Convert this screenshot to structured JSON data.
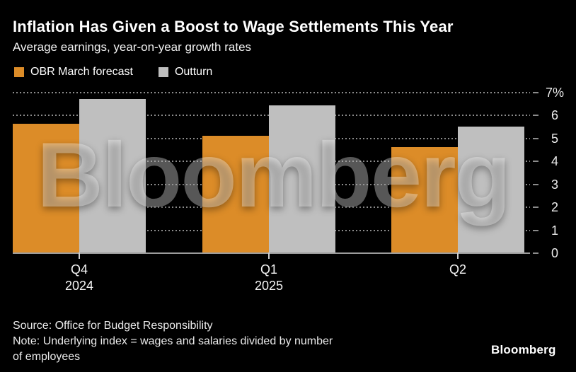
{
  "chart_data": {
    "type": "bar",
    "title": "Inflation Has Given a Boost to Wage Settlements This Year",
    "subtitle": "Average earnings, year-on-year growth rates",
    "categories": [
      {
        "quarter": "Q4",
        "year": "2024"
      },
      {
        "quarter": "Q1",
        "year": "2025"
      },
      {
        "quarter": "Q2",
        "year": ""
      }
    ],
    "series": [
      {
        "name": "OBR March forecast",
        "color": "#DC8C28",
        "values": [
          5.6,
          5.1,
          4.6
        ]
      },
      {
        "name": "Outturn",
        "color": "#BFBFBF",
        "values": [
          6.7,
          6.4,
          5.5
        ]
      }
    ],
    "ylabel": "",
    "xlabel": "",
    "ylim": [
      0,
      7
    ],
    "yticks": [
      {
        "value": 7,
        "label": "7%"
      },
      {
        "value": 6,
        "label": "6"
      },
      {
        "value": 5,
        "label": "5"
      },
      {
        "value": 4,
        "label": "4"
      },
      {
        "value": 3,
        "label": "3"
      },
      {
        "value": 2,
        "label": "2"
      },
      {
        "value": 1,
        "label": "1"
      },
      {
        "value": 0,
        "label": "0"
      }
    ],
    "grid": "horizontal-dotted",
    "legend_position": "top-left",
    "yaxis_side": "right"
  },
  "watermark": "Bloomberg",
  "footer": {
    "source": "Source: Office for Budget Responsibility",
    "note_lines": [
      "Note: Underlying index = wages and salaries divided by number",
      "of employees"
    ],
    "logo": "Bloomberg"
  },
  "colors": {
    "background": "#000000",
    "grid": "#8C8C8C",
    "axis_line": "#9C9C9C",
    "forecast_orange": "#DC8C28",
    "outturn_gray": "#BFBFBF",
    "text": "#FFFFFF"
  }
}
